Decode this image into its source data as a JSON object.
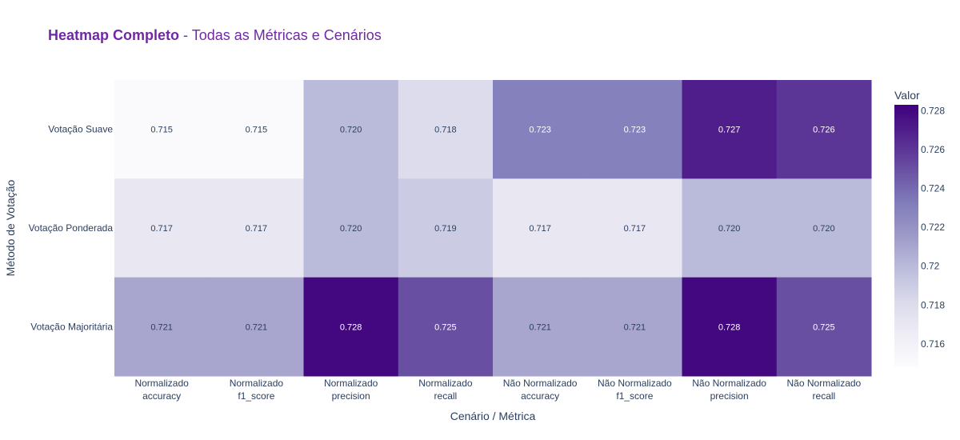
{
  "chart_data": {
    "type": "heatmap",
    "title_bold": "Heatmap Completo",
    "title_rest": " - Todas as Métricas e Cenários",
    "xlabel": "Cenário / Métrica",
    "ylabel": "Método de Votação",
    "x_categories": [
      [
        "Normalizado",
        "accuracy"
      ],
      [
        "Normalizado",
        "f1_score"
      ],
      [
        "Normalizado",
        "precision"
      ],
      [
        "Normalizado",
        "recall"
      ],
      [
        "Não Normalizado",
        "accuracy"
      ],
      [
        "Não Normalizado",
        "f1_score"
      ],
      [
        "Não Normalizado",
        "precision"
      ],
      [
        "Não Normalizado",
        "recall"
      ]
    ],
    "y_categories": [
      "Votação Suave",
      "Votação Ponderada",
      "Votação Majoritária"
    ],
    "values": [
      [
        0.715,
        0.715,
        0.72,
        0.718,
        0.723,
        0.723,
        0.727,
        0.726
      ],
      [
        0.717,
        0.717,
        0.72,
        0.719,
        0.717,
        0.717,
        0.72,
        0.72
      ],
      [
        0.721,
        0.721,
        0.728,
        0.725,
        0.721,
        0.721,
        0.728,
        0.725
      ]
    ],
    "value_labels": [
      [
        "0.715",
        "0.715",
        "0.720",
        "0.718",
        "0.723",
        "0.723",
        "0.727",
        "0.726"
      ],
      [
        "0.717",
        "0.717",
        "0.720",
        "0.719",
        "0.717",
        "0.717",
        "0.720",
        "0.720"
      ],
      [
        "0.721",
        "0.721",
        "0.728",
        "0.725",
        "0.721",
        "0.721",
        "0.728",
        "0.725"
      ]
    ],
    "colorscale": "Purples",
    "zmin": 0.7148,
    "zmax": 0.7283,
    "colorbar": {
      "title": "Valor",
      "ticks": [
        0.716,
        0.718,
        0.72,
        0.722,
        0.724,
        0.726,
        0.728
      ],
      "tick_labels": [
        "0.716",
        "0.718",
        "0.72",
        "0.722",
        "0.724",
        "0.726",
        "0.728"
      ]
    },
    "colors": {
      "title": "#7029a3",
      "low": "#fcfbfd",
      "high": "#3f007d"
    }
  }
}
